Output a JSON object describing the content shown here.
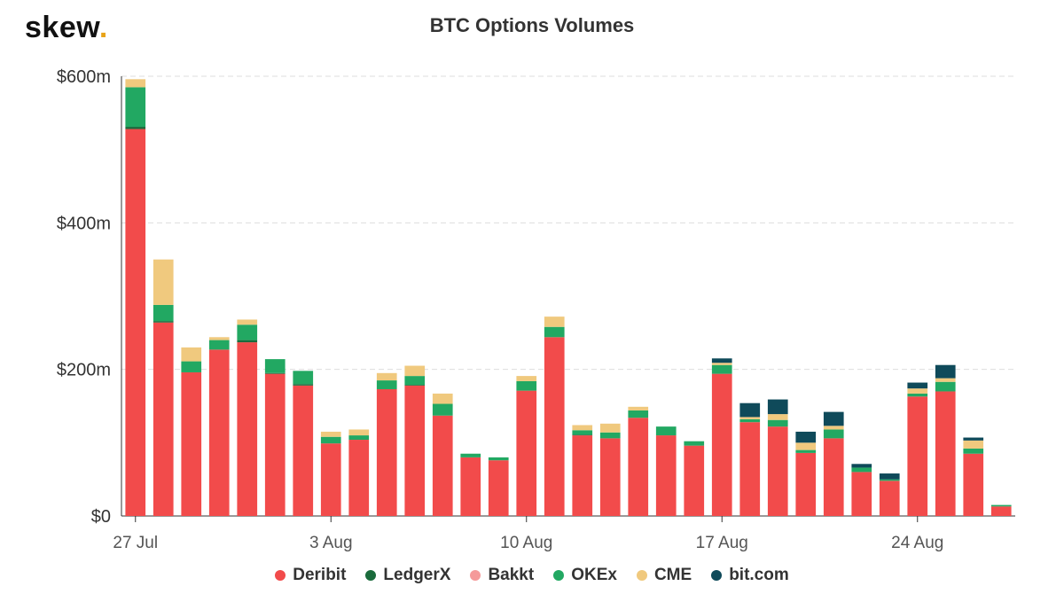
{
  "brand": {
    "text": "skew",
    "dot": "."
  },
  "chart_data": {
    "type": "bar",
    "stacked": true,
    "title": "BTC Options Volumes",
    "xlabel": "",
    "ylabel": "",
    "ylim": [
      0,
      600
    ],
    "yticks": [
      0,
      200,
      400,
      600
    ],
    "ytick_labels": [
      "$0",
      "$200m",
      "$400m",
      "$600m"
    ],
    "xticks": [
      {
        "label": "27 Jul",
        "index": 0
      },
      {
        "label": "3 Aug",
        "index": 7
      },
      {
        "label": "10 Aug",
        "index": 14
      },
      {
        "label": "17 Aug",
        "index": 21
      },
      {
        "label": "24 Aug",
        "index": 28
      }
    ],
    "categories": [
      "27 Jul",
      "28 Jul",
      "29 Jul",
      "30 Jul",
      "31 Jul",
      "1 Aug",
      "2 Aug",
      "3 Aug",
      "4 Aug",
      "5 Aug",
      "6 Aug",
      "7 Aug",
      "8 Aug",
      "9 Aug",
      "10 Aug",
      "11 Aug",
      "12 Aug",
      "13 Aug",
      "14 Aug",
      "15 Aug",
      "16 Aug",
      "17 Aug",
      "18 Aug",
      "19 Aug",
      "20 Aug",
      "21 Aug",
      "22 Aug",
      "23 Aug",
      "24 Aug",
      "25 Aug",
      "26 Aug",
      "27 Aug"
    ],
    "grid": true,
    "legend_position": "bottom",
    "series": [
      {
        "name": "Deribit",
        "color": "#f24b4b",
        "values": [
          528,
          264,
          196,
          227,
          237,
          194,
          178,
          99,
          104,
          173,
          178,
          137,
          80,
          76,
          171,
          244,
          110,
          106,
          134,
          110,
          96,
          194,
          128,
          122,
          86,
          106,
          60,
          48,
          163,
          170,
          85,
          13
        ]
      },
      {
        "name": "LedgerX",
        "color": "#1a6b3c",
        "values": [
          3,
          2,
          0,
          0,
          3,
          1,
          2,
          0,
          0,
          0,
          1,
          0,
          0,
          0,
          0,
          0,
          1,
          0,
          0,
          0,
          0,
          0,
          0,
          0,
          0,
          0,
          0,
          0,
          0,
          0,
          0,
          0
        ]
      },
      {
        "name": "Bakkt",
        "color": "#f59a9a",
        "values": [
          0,
          0,
          0,
          0,
          0,
          0,
          0,
          0,
          0,
          0,
          0,
          0,
          0,
          0,
          0,
          0,
          0,
          0,
          0,
          0,
          0,
          0,
          0,
          0,
          0,
          0,
          0,
          0,
          0,
          0,
          0,
          0
        ]
      },
      {
        "name": "OKEx",
        "color": "#22a862",
        "values": [
          54,
          22,
          15,
          13,
          21,
          19,
          18,
          9,
          6,
          12,
          12,
          16,
          5,
          4,
          13,
          14,
          6,
          8,
          10,
          12,
          6,
          12,
          4,
          9,
          4,
          12,
          6,
          2,
          4,
          13,
          7,
          2
        ]
      },
      {
        "name": "CME",
        "color": "#f0c97e",
        "values": [
          11,
          62,
          19,
          4,
          7,
          0,
          0,
          7,
          8,
          10,
          14,
          14,
          0,
          0,
          7,
          14,
          7,
          12,
          5,
          0,
          0,
          3,
          3,
          8,
          10,
          5,
          0,
          0,
          7,
          5,
          11,
          0
        ]
      },
      {
        "name": "bit.com",
        "color": "#0f4a5a",
        "values": [
          0,
          0,
          0,
          0,
          0,
          0,
          0,
          0,
          0,
          0,
          0,
          0,
          0,
          0,
          0,
          0,
          0,
          0,
          0,
          0,
          0,
          6,
          19,
          20,
          15,
          19,
          5,
          8,
          8,
          18,
          4,
          0
        ]
      }
    ]
  }
}
